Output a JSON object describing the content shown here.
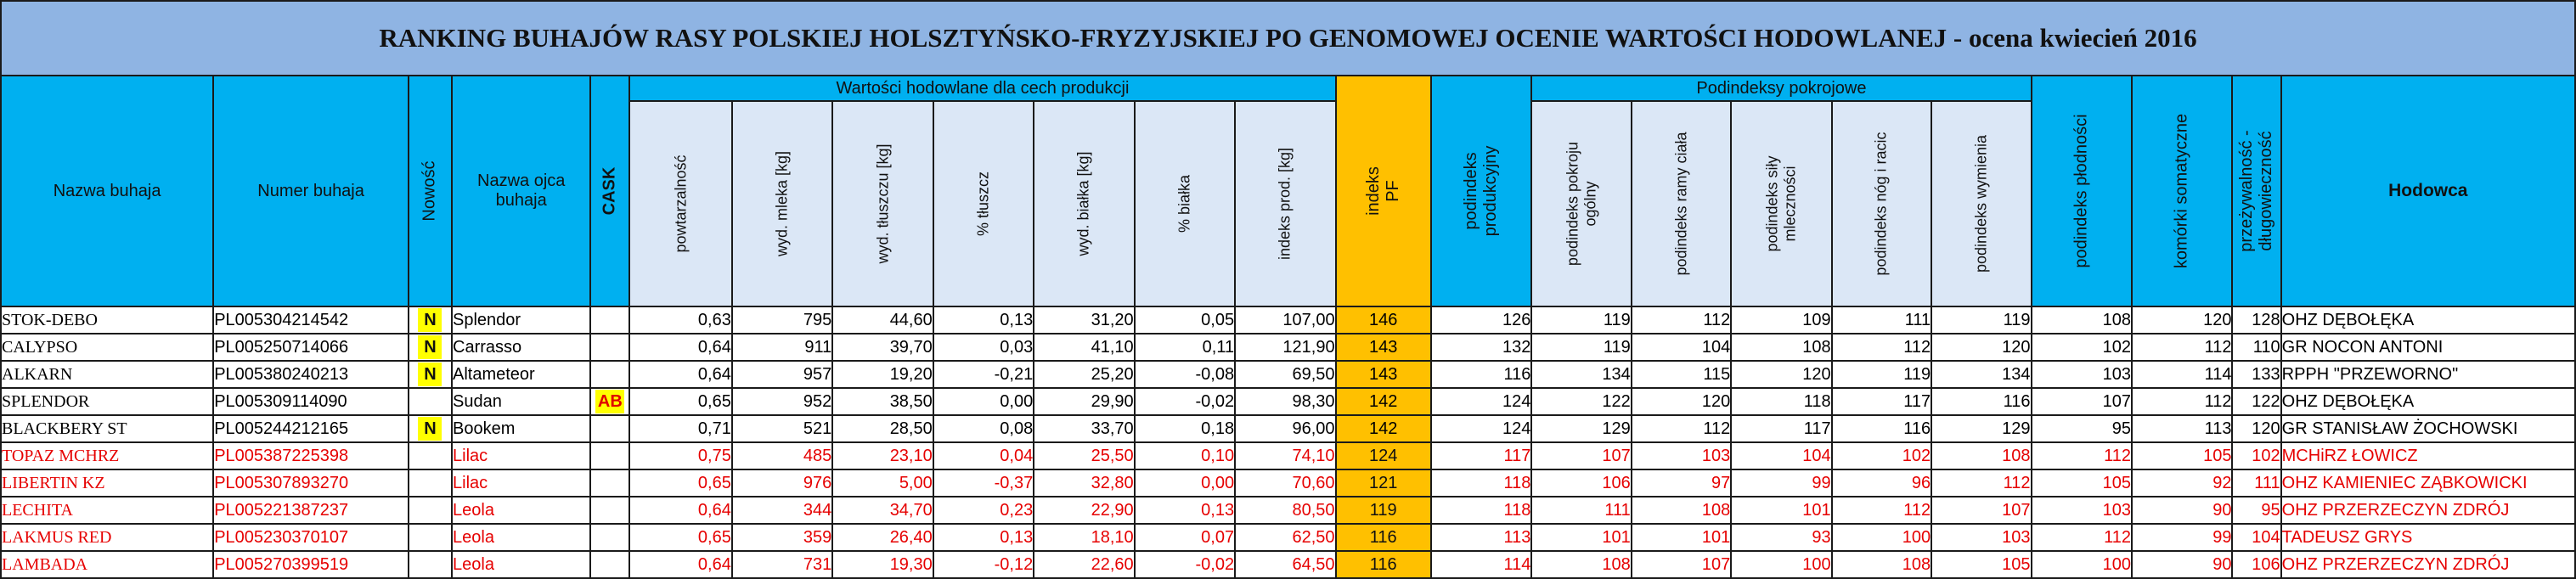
{
  "title": "RANKING BUHAJÓW RASY POLSKIEJ HOLSZTYŃSKO-FRYZYJSKIEJ PO GENOMOWEJ OCENIE WARTOŚCI HODOWLANEJ - ocena kwiecień 2016",
  "group_production": "Wartości hodowlane dla cech produkcji",
  "group_subindex": "Podindeksy pokrojowe",
  "headers": {
    "name": "Nazwa buhaja",
    "number": "Numer buhaja",
    "new": "Nowość",
    "father": "Nazwa ojca buhaja",
    "cask": "CASK",
    "repeat": "powtarzalność",
    "milk": "wyd. mleka [kg]",
    "fat": "wyd. tłuszczu [kg]",
    "fat_pct": "% tłuszcz",
    "protein": "wyd. białka [kg]",
    "protein_pct": "% białka",
    "prod_index": "indeks prod. [kg]",
    "pf_index": "indeks PF",
    "prod_sub": "podindeks produkcyjny",
    "form_general": "podindeks pokroju ogólny",
    "frame": "podindeks ramy ciała",
    "strength": "podindeks siły mleczności",
    "legs": "podindeks nóg i racic",
    "udder": "podindeks wymienia",
    "fertility": "podindeks płodności",
    "somatic": "komórki somatyczne",
    "longevity": "przeżywalność - długowieczność",
    "breeder": "Hodowca"
  },
  "rows": [
    {
      "name": "STOK-DEBO",
      "number": "PL005304214542",
      "new": "N",
      "father": "Splendor",
      "cask": "",
      "repeat": "0,63",
      "milk": "795",
      "fat": "44,60",
      "fat_pct": "0,13",
      "protein": "31,20",
      "protein_pct": "0,05",
      "prod_index": "107,00",
      "pf": "146",
      "prod_sub": "126",
      "form": "119",
      "frame": "112",
      "strength": "109",
      "legs": "111",
      "udder": "119",
      "fertility": "108",
      "somatic": "120",
      "longevity": "128",
      "breeder": "OHZ DĘBOŁĘKA",
      "red": false
    },
    {
      "name": "CALYPSO",
      "number": "PL005250714066",
      "new": "N",
      "father": "Carrasso",
      "cask": "",
      "repeat": "0,64",
      "milk": "911",
      "fat": "39,70",
      "fat_pct": "0,03",
      "protein": "41,10",
      "protein_pct": "0,11",
      "prod_index": "121,90",
      "pf": "143",
      "prod_sub": "132",
      "form": "119",
      "frame": "104",
      "strength": "108",
      "legs": "112",
      "udder": "120",
      "fertility": "102",
      "somatic": "112",
      "longevity": "110",
      "breeder": "GR NOCON ANTONI",
      "red": false
    },
    {
      "name": "ALKARN",
      "number": "PL005380240213",
      "new": "N",
      "father": "Altameteor",
      "cask": "",
      "repeat": "0,64",
      "milk": "957",
      "fat": "19,20",
      "fat_pct": "-0,21",
      "protein": "25,20",
      "protein_pct": "-0,08",
      "prod_index": "69,50",
      "pf": "143",
      "prod_sub": "116",
      "form": "134",
      "frame": "115",
      "strength": "120",
      "legs": "119",
      "udder": "134",
      "fertility": "103",
      "somatic": "114",
      "longevity": "133",
      "breeder": "RPPH \"PRZEWORNO\"",
      "red": false
    },
    {
      "name": "SPLENDOR",
      "number": "PL005309114090",
      "new": "",
      "father": "Sudan",
      "cask": "AB",
      "repeat": "0,65",
      "milk": "952",
      "fat": "38,50",
      "fat_pct": "0,00",
      "protein": "29,90",
      "protein_pct": "-0,02",
      "prod_index": "98,30",
      "pf": "142",
      "prod_sub": "124",
      "form": "122",
      "frame": "120",
      "strength": "118",
      "legs": "117",
      "udder": "116",
      "fertility": "107",
      "somatic": "112",
      "longevity": "122",
      "breeder": "OHZ DĘBOŁĘKA",
      "red": false
    },
    {
      "name": "BLACKBERY ST",
      "number": "PL005244212165",
      "new": "N",
      "father": "Bookem",
      "cask": "",
      "repeat": "0,71",
      "milk": "521",
      "fat": "28,50",
      "fat_pct": "0,08",
      "protein": "33,70",
      "protein_pct": "0,18",
      "prod_index": "96,00",
      "pf": "142",
      "prod_sub": "124",
      "form": "129",
      "frame": "112",
      "strength": "117",
      "legs": "116",
      "udder": "129",
      "fertility": "95",
      "somatic": "113",
      "longevity": "120",
      "breeder": "GR STANISŁAW ŻOCHOWSKI",
      "red": false
    },
    {
      "name": "TOPAZ MCHRZ",
      "number": "PL005387225398",
      "new": "",
      "father": "Lilac",
      "cask": "",
      "repeat": "0,75",
      "milk": "485",
      "fat": "23,10",
      "fat_pct": "0,04",
      "protein": "25,50",
      "protein_pct": "0,10",
      "prod_index": "74,10",
      "pf": "124",
      "prod_sub": "117",
      "form": "107",
      "frame": "103",
      "strength": "104",
      "legs": "102",
      "udder": "108",
      "fertility": "112",
      "somatic": "105",
      "longevity": "102",
      "breeder": "MCHiRZ ŁOWICZ",
      "red": true
    },
    {
      "name": "LIBERTIN KZ",
      "number": "PL005307893270",
      "new": "",
      "father": "Lilac",
      "cask": "",
      "repeat": "0,65",
      "milk": "976",
      "fat": "5,00",
      "fat_pct": "-0,37",
      "protein": "32,80",
      "protein_pct": "0,00",
      "prod_index": "70,60",
      "pf": "121",
      "prod_sub": "118",
      "form": "106",
      "frame": "97",
      "strength": "99",
      "legs": "96",
      "udder": "112",
      "fertility": "105",
      "somatic": "92",
      "longevity": "111",
      "breeder": "OHZ KAMIENIEC ZĄBKOWICKI",
      "red": true
    },
    {
      "name": "LECHITA",
      "number": "PL005221387237",
      "new": "",
      "father": "Leola",
      "cask": "",
      "repeat": "0,64",
      "milk": "344",
      "fat": "34,70",
      "fat_pct": "0,23",
      "protein": "22,90",
      "protein_pct": "0,13",
      "prod_index": "80,50",
      "pf": "119",
      "prod_sub": "118",
      "form": "111",
      "frame": "108",
      "strength": "101",
      "legs": "112",
      "udder": "107",
      "fertility": "103",
      "somatic": "90",
      "longevity": "95",
      "breeder": "OHZ PRZERZECZYN ZDRÓJ",
      "red": true
    },
    {
      "name": "LAKMUS RED",
      "number": "PL005230370107",
      "new": "",
      "father": "Leola",
      "cask": "",
      "repeat": "0,65",
      "milk": "359",
      "fat": "26,40",
      "fat_pct": "0,13",
      "protein": "18,10",
      "protein_pct": "0,07",
      "prod_index": "62,50",
      "pf": "116",
      "prod_sub": "113",
      "form": "101",
      "frame": "101",
      "strength": "93",
      "legs": "100",
      "udder": "103",
      "fertility": "112",
      "somatic": "99",
      "longevity": "104",
      "breeder": "TADEUSZ GRYS",
      "red": true
    },
    {
      "name": "LAMBADA",
      "number": "PL005270399519",
      "new": "",
      "father": "Leola",
      "cask": "",
      "repeat": "0,64",
      "milk": "731",
      "fat": "19,30",
      "fat_pct": "-0,12",
      "protein": "22,60",
      "protein_pct": "-0,02",
      "prod_index": "64,50",
      "pf": "116",
      "prod_sub": "114",
      "form": "108",
      "frame": "107",
      "strength": "100",
      "legs": "108",
      "udder": "105",
      "fertility": "100",
      "somatic": "90",
      "longevity": "106",
      "breeder": "OHZ PRZERZECZYN ZDRÓJ",
      "red": true
    }
  ]
}
